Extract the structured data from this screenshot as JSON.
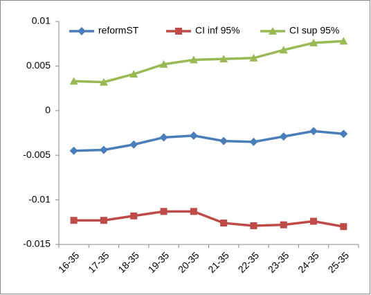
{
  "chart_data": {
    "type": "line",
    "categories": [
      "16-35",
      "17-35",
      "18-35",
      "19-35",
      "20-35",
      "21-35",
      "22-35",
      "23-35",
      "24-35",
      "25-35"
    ],
    "series": [
      {
        "name": "reformST",
        "color": "#4a7ebb",
        "marker": "diamond",
        "values": [
          -0.0045,
          -0.0044,
          -0.0038,
          -0.003,
          -0.0028,
          -0.0034,
          -0.0035,
          -0.0029,
          -0.0023,
          -0.0026
        ]
      },
      {
        "name": "CI inf 95%",
        "color": "#be4b48",
        "marker": "square",
        "values": [
          -0.0123,
          -0.0123,
          -0.0118,
          -0.0113,
          -0.0113,
          -0.0126,
          -0.0129,
          -0.0128,
          -0.0124,
          -0.013
        ]
      },
      {
        "name": "CI sup 95%",
        "color": "#98b954",
        "marker": "triangle",
        "values": [
          0.0033,
          0.0032,
          0.0041,
          0.0052,
          0.0057,
          0.0058,
          0.0059,
          0.0068,
          0.0076,
          0.0078
        ]
      }
    ],
    "ylim": [
      -0.015,
      0.01
    ],
    "yticks": [
      -0.015,
      -0.01,
      -0.005,
      0,
      0.005,
      0.01
    ],
    "grid": false,
    "legend": "top"
  }
}
